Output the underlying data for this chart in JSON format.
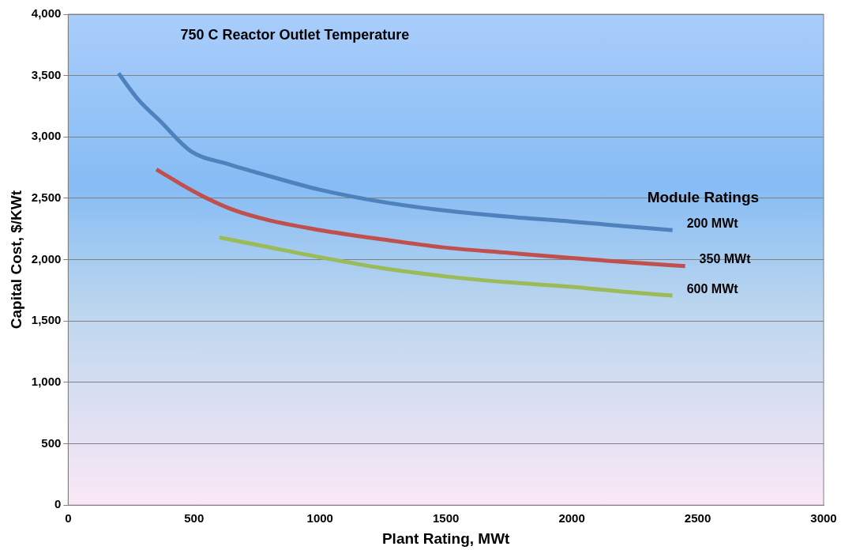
{
  "chart_data": {
    "type": "line",
    "title": "750 C Reactor Outlet Temperature",
    "xlabel": "Plant Rating, MWt",
    "ylabel": "Capital Cost, $/KWt",
    "legend_title": "Module Ratings",
    "xlim": [
      0,
      3000
    ],
    "xticks": [
      0,
      500,
      1000,
      1500,
      2000,
      2500,
      3000
    ],
    "ylim": [
      0,
      4000
    ],
    "yticks": [
      {
        "value": 0,
        "label": "0"
      },
      {
        "value": 500,
        "label": "500"
      },
      {
        "value": 1000,
        "label": "1,000"
      },
      {
        "value": 1500,
        "label": "1,500"
      },
      {
        "value": 2000,
        "label": "2,000"
      },
      {
        "value": 2500,
        "label": "2,500"
      },
      {
        "value": 3000,
        "label": "3,000"
      },
      {
        "value": 3500,
        "label": "3,500"
      },
      {
        "value": 4000,
        "label": "4,000"
      }
    ],
    "grid": "y",
    "marker": "none",
    "line_style": "solid",
    "legend": "right",
    "series": [
      {
        "name": "200 MWt",
        "color": "#4f81bd",
        "x": [
          200,
          280,
          360,
          490,
          630,
          800,
          1000,
          1250,
          1500,
          1750,
          2000,
          2200,
          2400
        ],
        "values": [
          3518,
          3300,
          3140,
          2880,
          2782,
          2680,
          2570,
          2470,
          2400,
          2350,
          2310,
          2275,
          2241
        ]
      },
      {
        "name": "350 MWt",
        "color": "#c0504d",
        "x": [
          350,
          500,
          650,
          800,
          1000,
          1250,
          1500,
          1750,
          2000,
          2250,
          2450
        ],
        "values": [
          2736,
          2554,
          2410,
          2320,
          2241,
          2165,
          2098,
          2055,
          2013,
          1975,
          1948
        ]
      },
      {
        "name": "600 MWt",
        "color": "#9bbb59",
        "x": [
          600,
          800,
          1000,
          1250,
          1500,
          1750,
          2000,
          2200,
          2400
        ],
        "values": [
          2182,
          2100,
          2020,
          1930,
          1863,
          1815,
          1778,
          1740,
          1707
        ]
      }
    ]
  }
}
